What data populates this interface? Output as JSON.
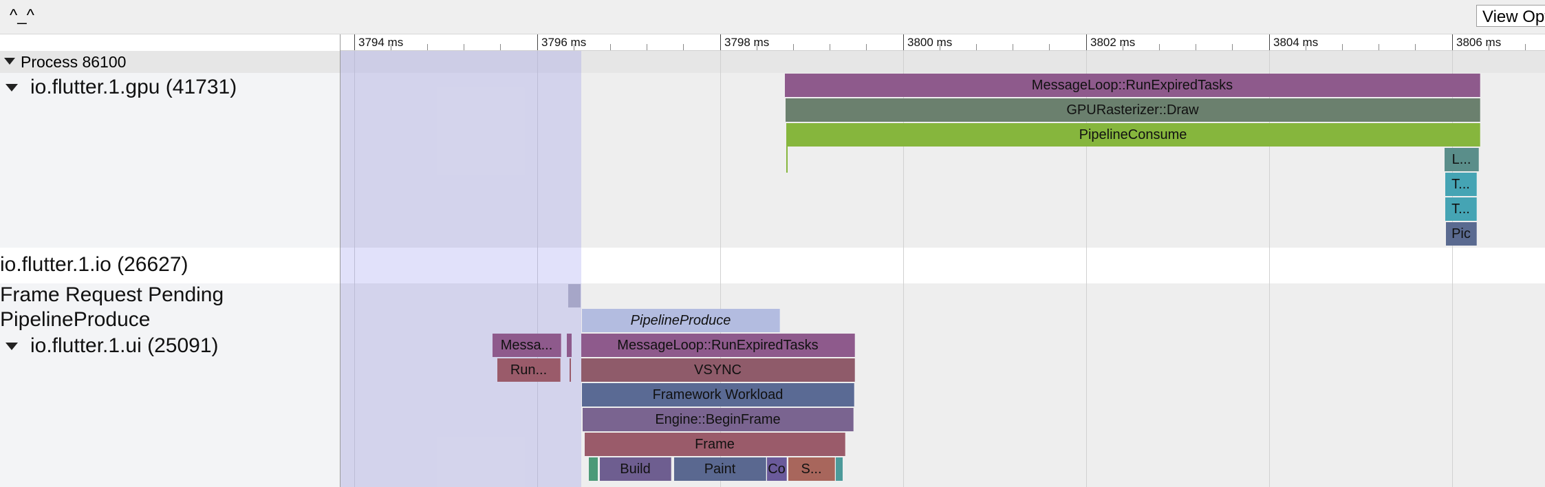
{
  "app": {
    "title": "^_^",
    "view_options_label": "View Options"
  },
  "timeline": {
    "ticks": [
      "3794 ms",
      "3796 ms",
      "3798 ms",
      "3800 ms",
      "3802 ms",
      "3804 ms",
      "3806 ms"
    ]
  },
  "process": {
    "label": "Process 86100"
  },
  "tracks": {
    "gpu": {
      "label": "io.flutter.1.gpu (41731)"
    },
    "io": {
      "label": "io.flutter.1.io (26627)"
    },
    "frame_request": {
      "label": "Frame Request Pending"
    },
    "pipeline_produce": {
      "label": "PipelineProduce"
    },
    "ui": {
      "label": "io.flutter.1.ui (25091)"
    }
  },
  "slices": {
    "gpu_runexpired": "MessageLoop::RunExpiredTasks",
    "gpu_rasterizer": "GPURasterizer::Draw",
    "gpu_pipeline_consume": "PipelineConsume",
    "gpu_l": "L...",
    "gpu_t1": "T...",
    "gpu_t2": "T...",
    "gpu_pic": "Pic",
    "pipeline_produce": "PipelineProduce",
    "ui_messa": "Messa...",
    "ui_run": "Run...",
    "ui_runexpired": "MessageLoop::RunExpiredTasks",
    "ui_vsync": "VSYNC",
    "ui_framework": "Framework Workload",
    "ui_beginframe": "Engine::BeginFrame",
    "ui_frame": "Frame",
    "ui_build": "Build",
    "ui_paint": "Paint",
    "ui_co": "Co",
    "ui_s": "S..."
  },
  "colors": {
    "track_gray": "#eeeeee",
    "io_row": "#ffffff",
    "selection": "#d6d6f0",
    "runexpired": "#8e5a8c",
    "rasterizer": "#6b806e",
    "pipeline_consume": "#86b63d",
    "teal_dark": "#5a8e8a",
    "teal": "#45a4b4",
    "pic": "#5a6a90",
    "pipeline_produce": "#b3bce0",
    "vsync": "#8f5b6a",
    "framework": "#5a6a94",
    "beginframe": "#7a6490",
    "frame": "#9a5b6a",
    "build": "#6e5e90",
    "paint": "#5a6890",
    "co": "#6a5a9a",
    "s": "#a8665c"
  }
}
